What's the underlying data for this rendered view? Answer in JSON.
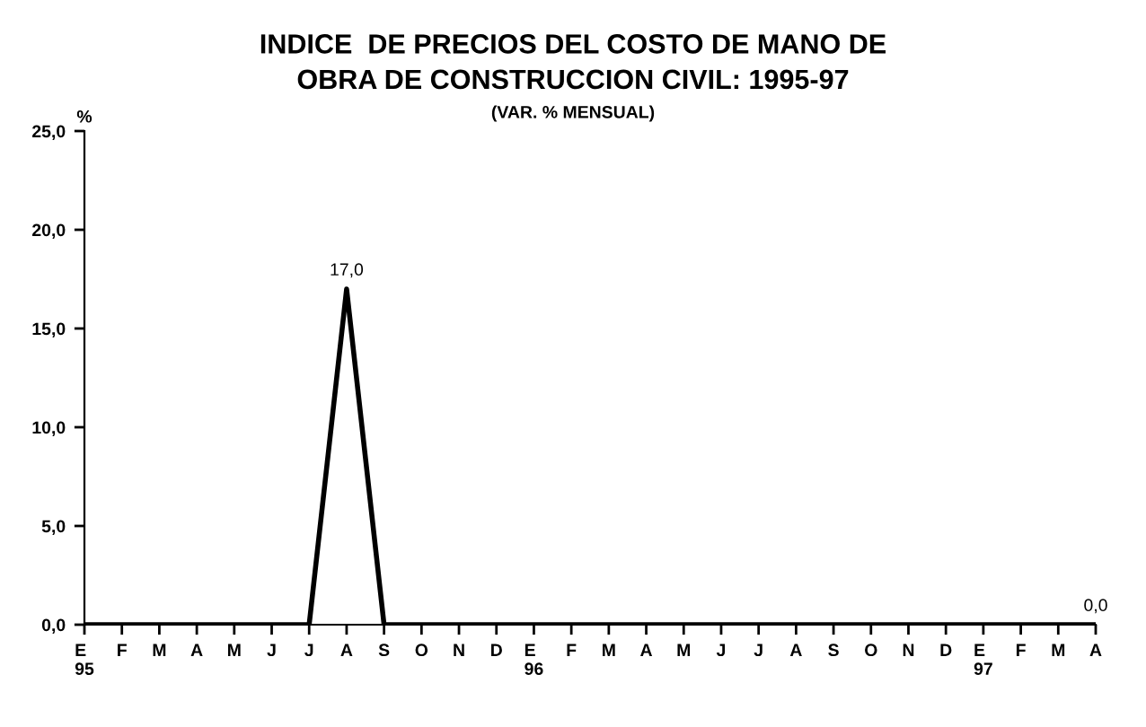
{
  "chart_data": {
    "type": "line",
    "title": "INDICE  DE PRECIOS DEL COSTO DE MANO DE\nOBRA DE CONSTRUCCION CIVIL: 1995-97",
    "subtitle": "(VAR. % MENSUAL)",
    "ylabel": "%",
    "categories": [
      "E\n95",
      "F",
      "M",
      "A",
      "M",
      "J",
      "J",
      "A",
      "S",
      "O",
      "N",
      "D",
      "E\n96",
      "F",
      "M",
      "A",
      "M",
      "J",
      "J",
      "A",
      "S",
      "O",
      "N",
      "D",
      "E\n97",
      "F",
      "M",
      "A"
    ],
    "series": [
      {
        "color": "#000000",
        "values": [
          0,
          0,
          0,
          0,
          0,
          0,
          0,
          17.0,
          0,
          0,
          0,
          0,
          0,
          0,
          0,
          0,
          0,
          0,
          0,
          0,
          0,
          0,
          0,
          0,
          0,
          0,
          0,
          0
        ],
        "value_labels": [
          null,
          null,
          null,
          null,
          null,
          null,
          null,
          "17,0",
          null,
          null,
          null,
          null,
          null,
          null,
          null,
          null,
          null,
          null,
          null,
          null,
          null,
          null,
          null,
          null,
          null,
          null,
          null,
          "0,0"
        ]
      }
    ],
    "ylim": [
      0,
      25
    ],
    "yticks": [
      {
        "value": 0,
        "label": "0,0"
      },
      {
        "value": 5,
        "label": "5,0"
      },
      {
        "value": 10,
        "label": "10,0"
      },
      {
        "value": 15,
        "label": "15,0"
      },
      {
        "value": 20,
        "label": "20,0"
      },
      {
        "value": 25,
        "label": "25,0"
      }
    ],
    "grid": false,
    "legend": false,
    "marker": "none",
    "line_style": "solid"
  }
}
